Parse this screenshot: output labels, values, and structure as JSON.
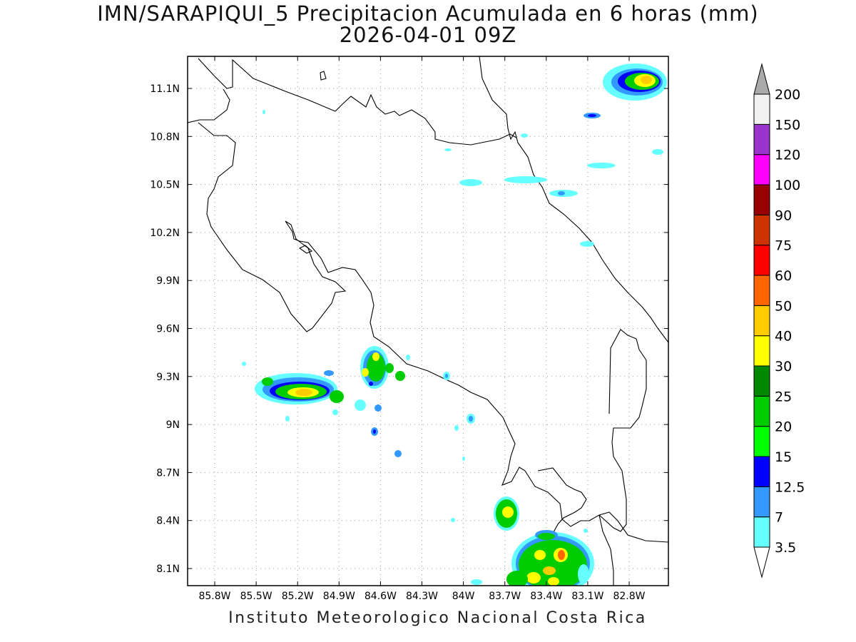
{
  "title_line1": "IMN/SARAPIQUI_5 Precipitacion Acumulada en 6 horas (mm)",
  "title_line2": "2026-04-01 09Z",
  "footer": "Instituto Meteorologico Nacional Costa Rica",
  "map": {
    "x_ticks": [
      "85.8W",
      "85.5W",
      "85.2W",
      "84.9W",
      "84.6W",
      "84.3W",
      "84W",
      "83.7W",
      "83.4W",
      "83.1W",
      "82.8W"
    ],
    "y_ticks": [
      "11.1N",
      "10.8N",
      "10.5N",
      "10.2N",
      "9.9N",
      "9.6N",
      "9.3N",
      "9N",
      "8.7N",
      "8.4N",
      "8.1N"
    ],
    "gridlines": "dotted"
  },
  "colorbar": {
    "labels": [
      "3.5",
      "7",
      "12.5",
      "15",
      "20",
      "25",
      "30",
      "40",
      "50",
      "60",
      "75",
      "90",
      "100",
      "120",
      "150",
      "200"
    ],
    "colors": [
      "#66ffff",
      "#3399ff",
      "#0000ff",
      "#00ff00",
      "#00cc00",
      "#008800",
      "#ffff00",
      "#ffcc00",
      "#ff6600",
      "#ff0000",
      "#cc3300",
      "#990000",
      "#ff00ff",
      "#9933cc",
      "#f2f2f2",
      "#aaaaaa"
    ]
  }
}
